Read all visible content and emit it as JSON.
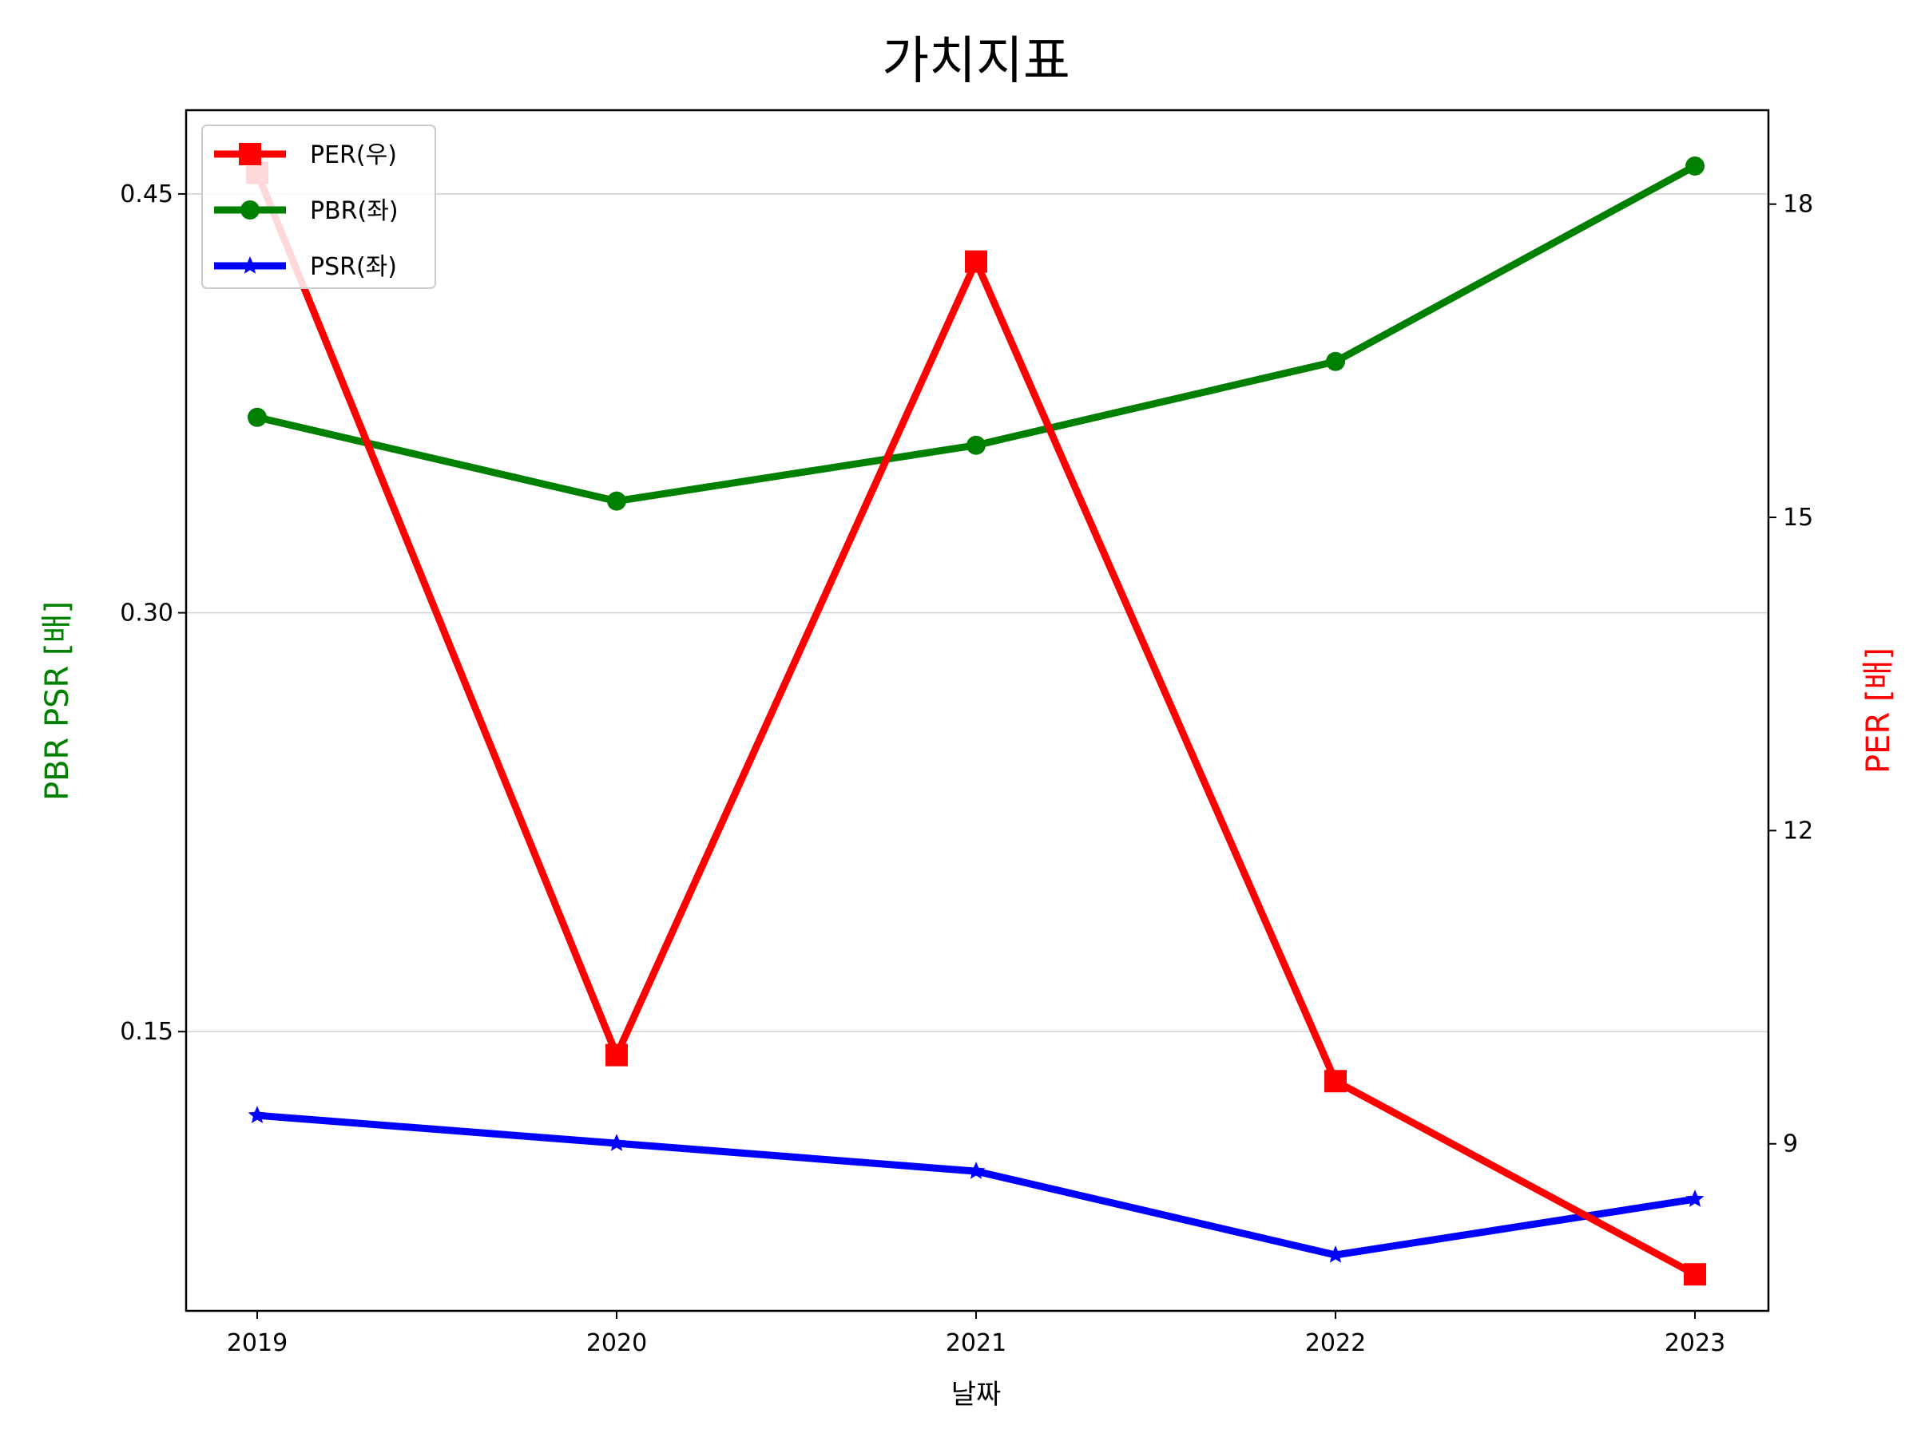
{
  "chart_data": {
    "type": "line",
    "title": "가치지표",
    "xlabel": "날짜",
    "ylabel_left": "PBR PSR [배]",
    "ylabel_right": "PER [배]",
    "categories": [
      "2019",
      "2020",
      "2021",
      "2022",
      "2023"
    ],
    "left_axis": {
      "ylim": [
        0.05,
        0.48
      ],
      "ticks": [
        "0.15",
        "0.30",
        "0.45"
      ],
      "tick_values": [
        0.15,
        0.3,
        0.45
      ],
      "label_color": "#008000"
    },
    "right_axis": {
      "ylim": [
        7.4,
        18.9
      ],
      "ticks": [
        "9",
        "12",
        "15",
        "18"
      ],
      "tick_values": [
        9,
        12,
        15,
        18
      ],
      "label_color": "#ff0000"
    },
    "grid": "horizontal",
    "legend_position": "upper-left",
    "series": [
      {
        "name": "PER(우)",
        "axis": "right",
        "color": "#ff0000",
        "marker": "square",
        "values": [
          18.3,
          9.85,
          17.45,
          9.6,
          7.75
        ]
      },
      {
        "name": "PBR(좌)",
        "axis": "left",
        "color": "#008000",
        "marker": "circle",
        "values": [
          0.37,
          0.34,
          0.36,
          0.39,
          0.46
        ]
      },
      {
        "name": "PSR(좌)",
        "axis": "left",
        "color": "#0000ff",
        "marker": "star",
        "values": [
          0.12,
          0.11,
          0.1,
          0.07,
          0.09
        ]
      }
    ]
  }
}
